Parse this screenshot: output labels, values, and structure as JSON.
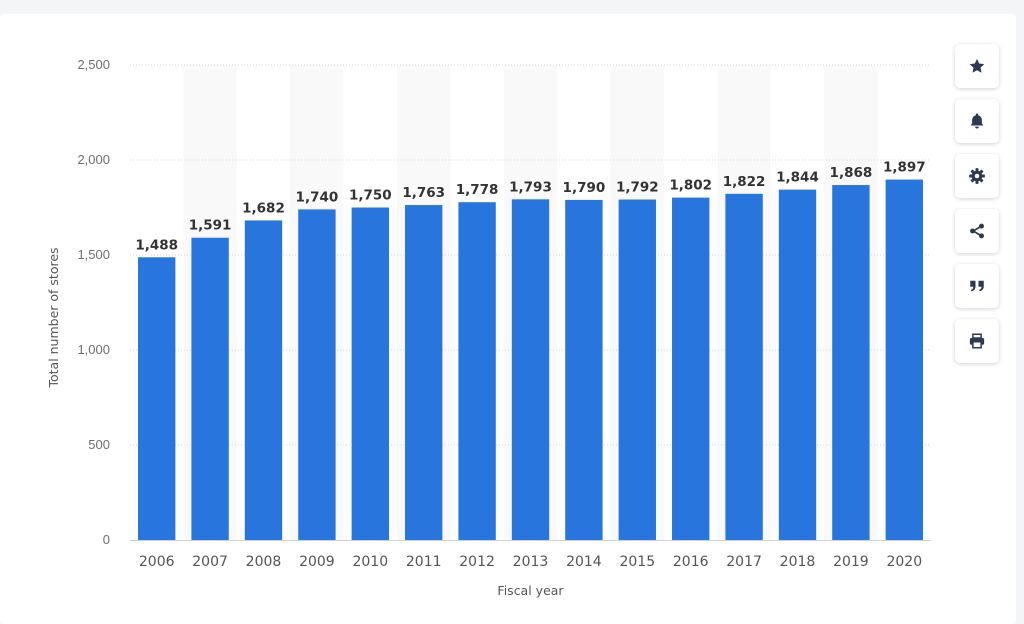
{
  "chart_data": {
    "type": "bar",
    "categories": [
      "2006",
      "2007",
      "2008",
      "2009",
      "2010",
      "2011",
      "2012",
      "2013",
      "2014",
      "2015",
      "2016",
      "2017",
      "2018",
      "2019",
      "2020"
    ],
    "values": [
      1488,
      1591,
      1682,
      1740,
      1750,
      1763,
      1778,
      1793,
      1790,
      1792,
      1802,
      1822,
      1844,
      1868,
      1897
    ],
    "data_labels": [
      "1,488",
      "1,591",
      "1,682",
      "1,740",
      "1,750",
      "1,763",
      "1,778",
      "1,793",
      "1,790",
      "1,792",
      "1,802",
      "1,822",
      "1,844",
      "1,868",
      "1,897"
    ],
    "title": "",
    "xlabel": "Fiscal year",
    "ylabel": "Total number of stores",
    "ylim": [
      0,
      2500
    ],
    "yticks": [
      0,
      500,
      1000,
      1500,
      2000,
      2500
    ],
    "ytick_labels": [
      "0",
      "500",
      "1,000",
      "1,500",
      "2,000",
      "2,500"
    ],
    "bar_color": "#2876dd",
    "grid": true
  },
  "toolbar": {
    "items": [
      {
        "icon": "star-icon"
      },
      {
        "icon": "bell-icon"
      },
      {
        "icon": "gear-icon"
      },
      {
        "icon": "share-icon"
      },
      {
        "icon": "quote-icon"
      },
      {
        "icon": "print-icon"
      }
    ]
  }
}
